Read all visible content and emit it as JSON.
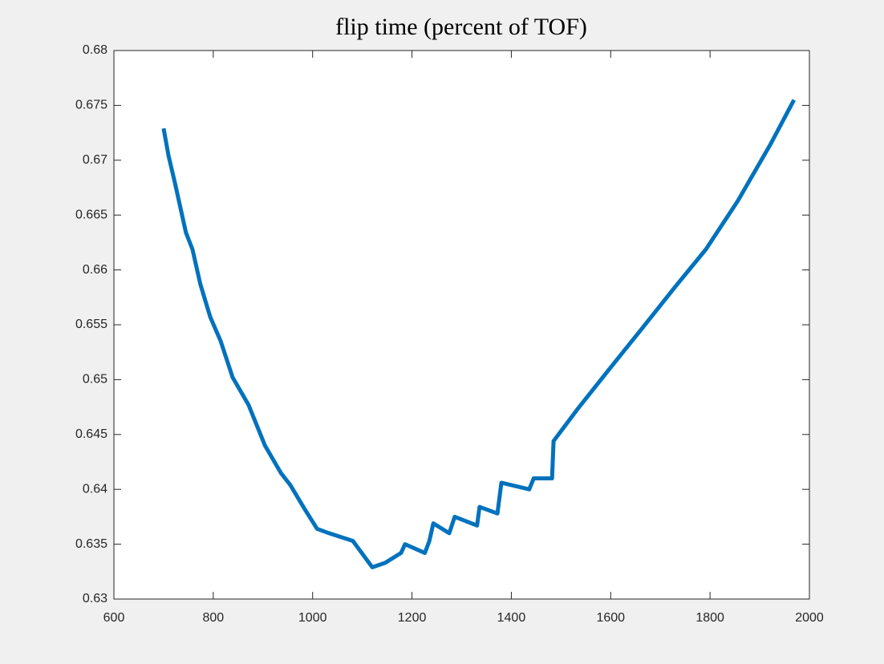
{
  "chart_data": {
    "type": "line",
    "title": "flip time (percent of TOF)",
    "x": [
      700,
      710,
      723,
      745,
      758,
      774,
      794,
      815,
      839,
      871,
      904,
      936,
      955,
      984,
      1009,
      1033,
      1081,
      1120,
      1146,
      1178,
      1186,
      1226,
      1235,
      1243,
      1275,
      1286,
      1331,
      1336,
      1372,
      1380,
      1436,
      1445,
      1482,
      1485,
      1533,
      1598,
      1662,
      1727,
      1792,
      1856,
      1921,
      1969
    ],
    "series": [
      {
        "color": "#0072bd",
        "values": [
          0.6729,
          0.6704,
          0.6679,
          0.6634,
          0.6619,
          0.6587,
          0.6557,
          0.6535,
          0.6502,
          0.6477,
          0.644,
          0.6415,
          0.6404,
          0.6382,
          0.6364,
          0.636,
          0.6353,
          0.6329,
          0.6333,
          0.6342,
          0.635,
          0.6342,
          0.6353,
          0.6369,
          0.636,
          0.6375,
          0.6367,
          0.6384,
          0.6378,
          0.6406,
          0.64,
          0.641,
          0.641,
          0.6444,
          0.6473,
          0.651,
          0.6546,
          0.6583,
          0.6619,
          0.6663,
          0.6714,
          0.6755
        ]
      }
    ],
    "xlim": [
      600,
      2000
    ],
    "xticks": [
      600,
      800,
      1000,
      1200,
      1400,
      1600,
      1800,
      2000
    ],
    "ylim": [
      0.63,
      0.68
    ],
    "yticks": [
      0.63,
      0.635,
      0.64,
      0.645,
      0.65,
      0.655,
      0.66,
      0.665,
      0.67,
      0.675,
      0.68
    ]
  }
}
